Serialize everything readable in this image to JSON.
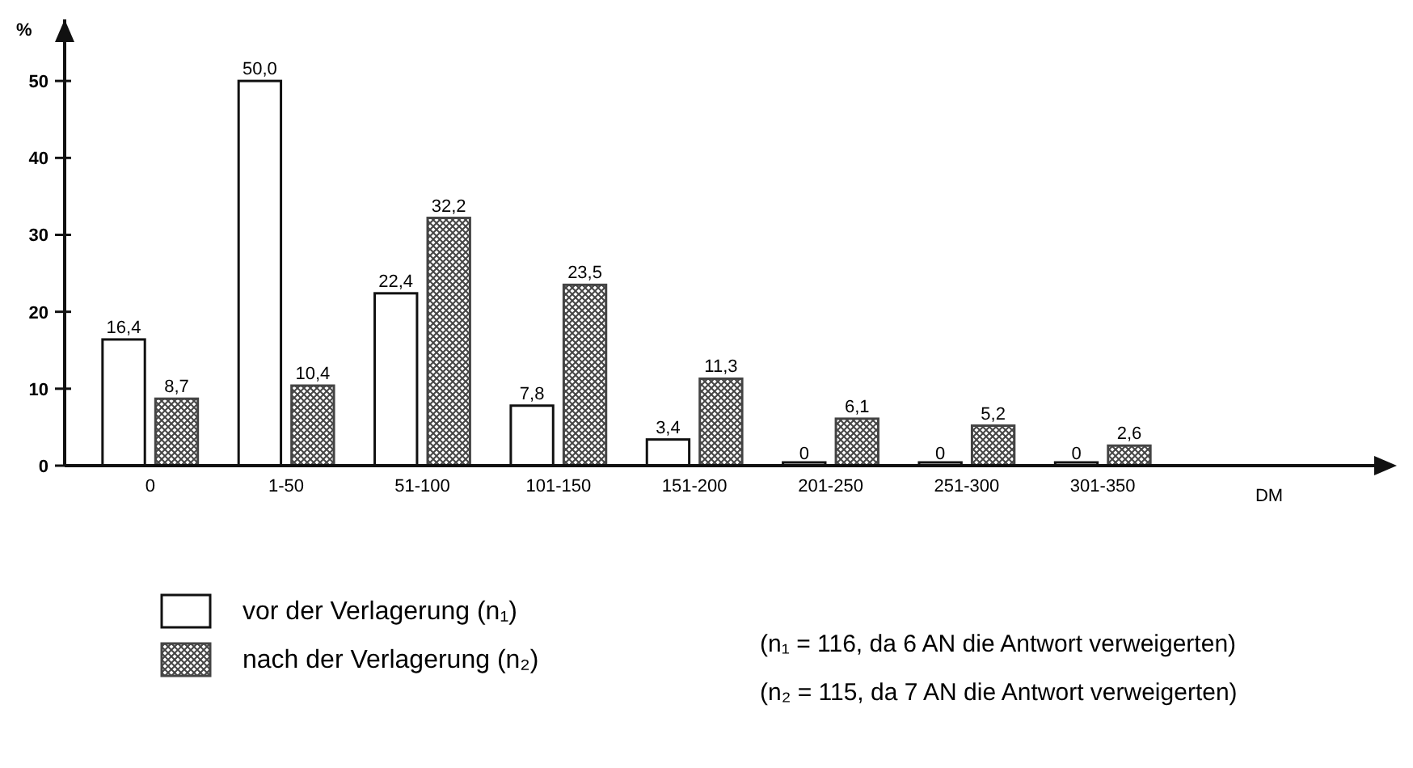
{
  "chart_data": {
    "type": "bar",
    "xlabel": "DM",
    "ylabel": "%",
    "categories": [
      "0",
      "1-50",
      "51-100",
      "101-150",
      "151-200",
      "201-250",
      "251-300",
      "301-350"
    ],
    "series": [
      {
        "name": "vor der Verlagerung (n₁)",
        "color": "#ffffff",
        "values": [
          16.4,
          50.0,
          22.4,
          7.8,
          3.4,
          0,
          0,
          0
        ],
        "value_labels": [
          "16,4",
          "50,0",
          "22,4",
          "7,8",
          "3,4",
          "0",
          "0",
          "0"
        ]
      },
      {
        "name": "nach der Verlagerung (n₂)",
        "color": "#444444",
        "values": [
          8.7,
          10.4,
          32.2,
          23.5,
          11.3,
          6.1,
          5.2,
          2.6
        ],
        "value_labels": [
          "8,7",
          "10,4",
          "32,2",
          "23,5",
          "11,3",
          "6,1",
          "5,2",
          "2,6"
        ]
      }
    ],
    "ylim": [
      0,
      58
    ],
    "yticks": [
      0,
      10,
      20,
      30,
      40,
      50
    ],
    "grid": false,
    "legend": "bottom left",
    "annotations": [
      "(n₁ = 116, da 6 AN die Antwort verweigerten)",
      "(n₂ = 115, da 7 AN die Antwort verweigerten)"
    ]
  }
}
